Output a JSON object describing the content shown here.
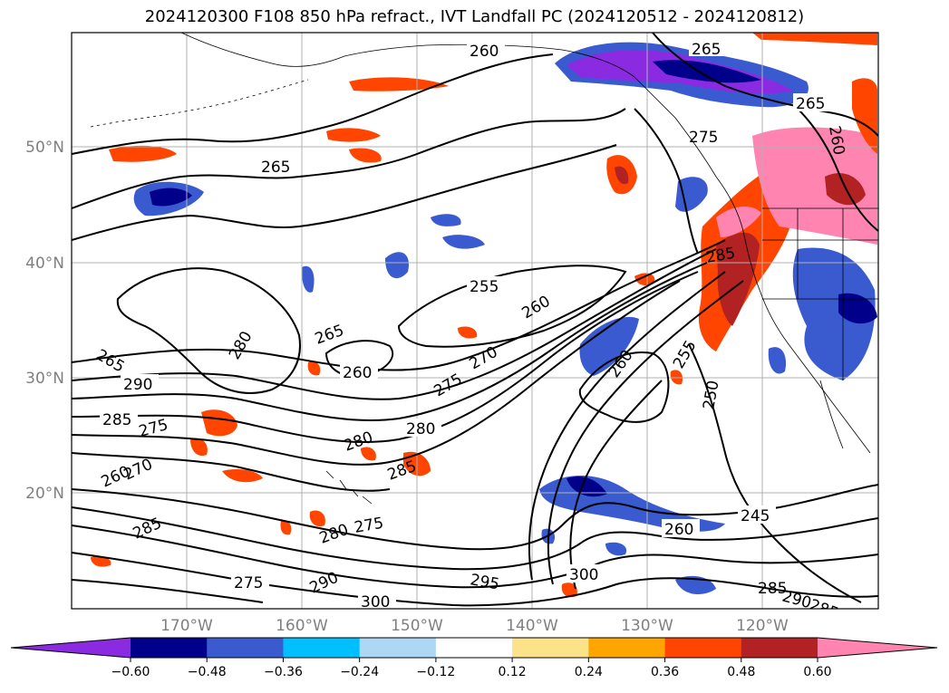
{
  "title": "2024120300 F108 850 hPa refract., IVT Landfall PC (2024120512 - 2024120812)",
  "lat_labels": [
    "50°N",
    "40°N",
    "30°N",
    "20°N"
  ],
  "lon_labels": [
    "170°W",
    "160°W",
    "150°W",
    "140°W",
    "130°W",
    "120°W"
  ],
  "colorbar": {
    "colors": [
      "#8a2be2",
      "#00008b",
      "#3a5bd0",
      "#00bfff",
      "#add8f4",
      "#ffffff",
      "#fce38a",
      "#ffa500",
      "#ff4500",
      "#b22222",
      "#ff85b0"
    ],
    "tick_labels": [
      "−0.60",
      "−0.48",
      "−0.36",
      "−0.24",
      "−0.12",
      "0.12",
      "0.24",
      "0.36",
      "0.48",
      "0.60"
    ]
  },
  "contour_labels": [
    "260",
    "265",
    "265",
    "265",
    "275",
    "260",
    "255",
    "260",
    "265",
    "270",
    "275",
    "280",
    "260",
    "290",
    "285",
    "275",
    "260",
    "270",
    "285",
    "280",
    "280",
    "285",
    "280",
    "275",
    "290",
    "275",
    "300",
    "295",
    "300",
    "260",
    "250",
    "255",
    "245",
    "260",
    "285",
    "290",
    "285",
    "285",
    "265"
  ],
  "map_features": {
    "land": "North American west coast, Alaska, Aleutian Islands, Hawaiian Islands",
    "colors": {
      "contour": "#000000",
      "grid": "#b0b0b0",
      "axis_label": "#808080"
    }
  }
}
